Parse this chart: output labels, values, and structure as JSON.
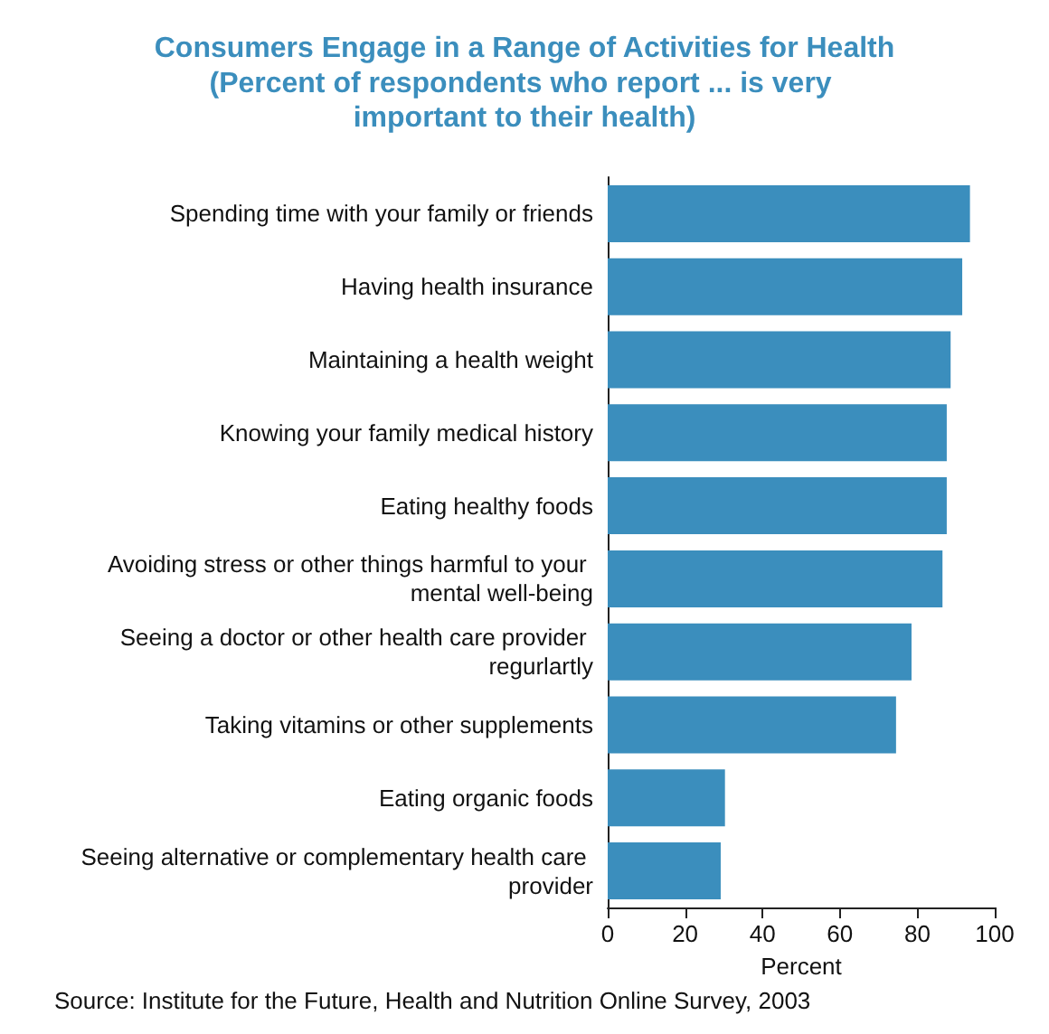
{
  "chart_data": {
    "type": "bar",
    "orientation": "horizontal",
    "title": "Consumers Engage in a Range of Activities for Health",
    "subtitle": "(Percent of respondents who report ... is very important to their health)",
    "categories": [
      "Spending time with your family or friends",
      "Having health insurance",
      "Maintaining a health weight",
      "Knowing your family medical history",
      "Eating healthy foods",
      "Avoiding stress or other things harmful to your mental well-being",
      "Seeing a doctor or other health care provider regurlartly",
      "Taking vitamins or other supplements",
      "Eating organic foods",
      "Seeing alternative or complementary health care provider"
    ],
    "values": [
      93.6,
      91.6,
      88.6,
      87.6,
      87.6,
      86.5,
      78.5,
      74.5,
      30.3,
      29.2
    ],
    "color": "#3b8ebd",
    "xlabel": "Percent",
    "xlim": [
      0,
      100
    ],
    "xticks": [
      0,
      20,
      40,
      60,
      80,
      100
    ],
    "grid": false,
    "annotations": [
      "Source: Institute for the Future, Health and Nutrition Online Survey, 2003"
    ]
  }
}
